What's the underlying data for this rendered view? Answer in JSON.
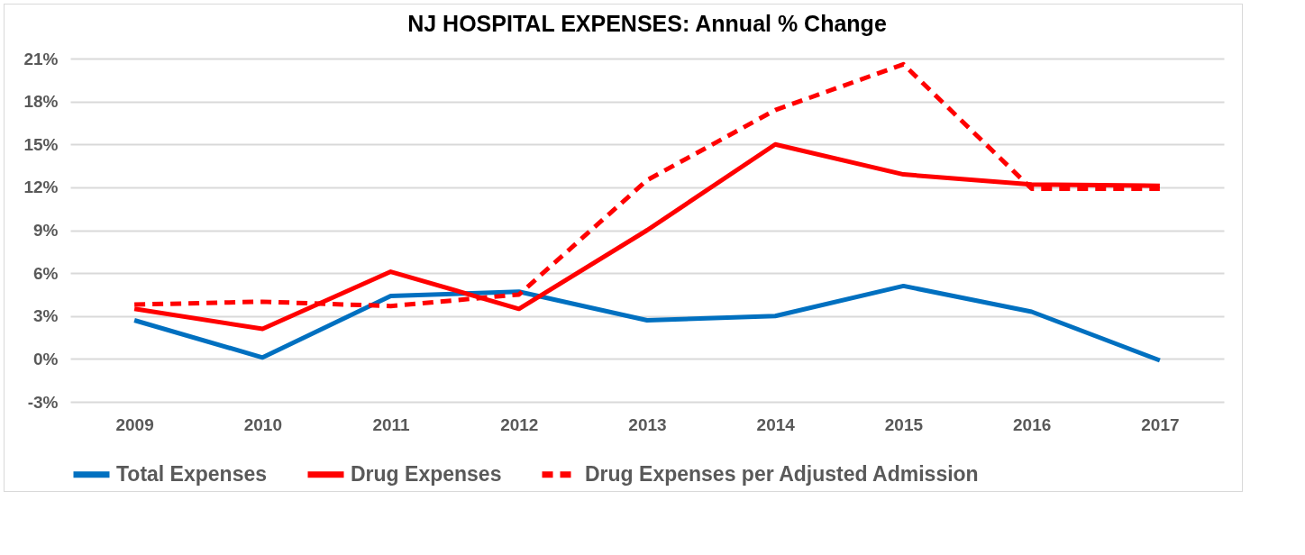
{
  "chart_data": {
    "type": "line",
    "title": "NJ HOSPITAL EXPENSES: Annual % Change",
    "categories": [
      "2009",
      "2010",
      "2011",
      "2012",
      "2013",
      "2014",
      "2015",
      "2016",
      "2017"
    ],
    "series": [
      {
        "name": "Total Expenses",
        "color": "#0070c0",
        "line_style": "solid",
        "values": [
          2.7,
          0.1,
          4.4,
          4.7,
          2.7,
          3.0,
          5.1,
          3.3,
          -0.1
        ]
      },
      {
        "name": "Drug Expenses",
        "color": "#ff0000",
        "line_style": "solid",
        "values": [
          3.5,
          2.1,
          6.1,
          3.5,
          9.0,
          15.0,
          12.9,
          12.2,
          12.1
        ]
      },
      {
        "name": "Drug Expenses per Adjusted Admission",
        "color": "#ff0000",
        "line_style": "dashed",
        "values": [
          3.8,
          4.0,
          3.7,
          4.5,
          12.5,
          17.4,
          20.6,
          11.9,
          11.9
        ]
      }
    ],
    "ylim": [
      -3,
      21
    ],
    "yticks": [
      {
        "value": -3,
        "label": "-3%"
      },
      {
        "value": 0,
        "label": "0%"
      },
      {
        "value": 3,
        "label": "3%"
      },
      {
        "value": 6,
        "label": "6%"
      },
      {
        "value": 9,
        "label": "9%"
      },
      {
        "value": 12,
        "label": "12%"
      },
      {
        "value": 15,
        "label": "15%"
      },
      {
        "value": 18,
        "label": "18%"
      },
      {
        "value": 21,
        "label": "21%"
      }
    ],
    "grid": "y",
    "legend": "bottom",
    "marker": "none"
  }
}
